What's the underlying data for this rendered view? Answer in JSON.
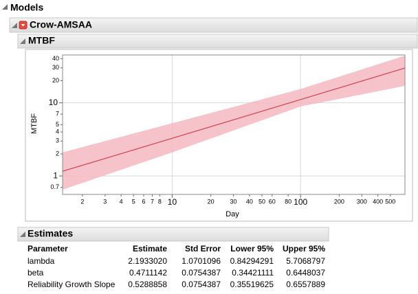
{
  "outline": {
    "models": "Models",
    "crow": "Crow-AMSAA",
    "mtbf": "MTBF",
    "estimates": "Estimates"
  },
  "chart_data": {
    "type": "band-line",
    "xlabel": "Day",
    "ylabel": "MTBF",
    "xscale": "log",
    "yscale": "log",
    "grid": true,
    "xlim": [
      1.4,
      650
    ],
    "ylim": [
      0.56,
      45
    ],
    "xticks": [
      2,
      3,
      4,
      5,
      6,
      7,
      8,
      10,
      20,
      30,
      40,
      50,
      60,
      80,
      100,
      200,
      300,
      400,
      500
    ],
    "yticks": [
      0.7,
      1,
      2,
      3,
      4,
      5,
      7,
      10,
      20,
      30,
      40
    ],
    "x": [
      1.4,
      10,
      100,
      650
    ],
    "values": [
      1.16,
      3.27,
      11.06,
      29.8
    ],
    "lower": [
      0.65,
      2.1,
      8.9,
      17
    ],
    "upper": [
      2.1,
      5.25,
      15.4,
      44
    ],
    "color": "#d0404f",
    "band_color": "#f3b8c0"
  },
  "table": {
    "columns": [
      "Parameter",
      "Estimate",
      "Std Error",
      "Lower 95%",
      "Upper 95%"
    ],
    "rows": [
      [
        "lambda",
        "2.1933020",
        "1.0701096",
        "0.84294291",
        "5.7068797"
      ],
      [
        "beta",
        "0.4711142",
        "0.0754387",
        "0.34421111",
        "0.6448037"
      ],
      [
        "Reliability Growth Slope",
        "0.5288858",
        "0.0754387",
        "0.35519625",
        "0.6557889"
      ]
    ]
  }
}
